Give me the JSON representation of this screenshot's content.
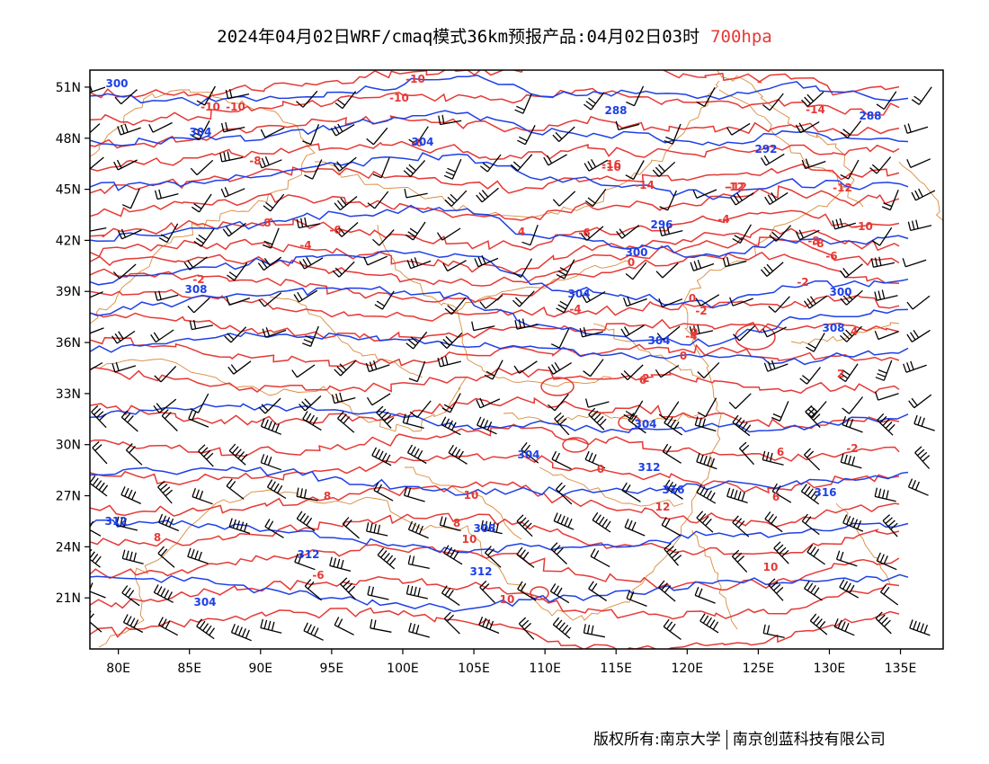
{
  "title": {
    "main": "2024年04月02日WRF/cmaq模式36km预报产品:04月02日03时",
    "level": "700hpa",
    "level_color": "#e53935"
  },
  "map": {
    "lat_labels": [
      "51N",
      "48N",
      "45N",
      "42N",
      "39N",
      "36N",
      "33N",
      "30N",
      "27N",
      "24N",
      "21N"
    ],
    "lon_labels": [
      "80E",
      "85E",
      "90E",
      "95E",
      "100E",
      "105E",
      "110E",
      "115E",
      "120E",
      "125E",
      "130E",
      "135E"
    ],
    "lon_range": [
      78,
      138
    ],
    "lat_range": [
      18,
      52
    ],
    "colors": {
      "temperature_contour": "#e53935",
      "geopotential_contour": "#1e40e6",
      "boundaries": "#d98a3a",
      "wind_barbs": "#000000"
    },
    "temperature_labels": [
      "-10",
      "-10",
      "-10",
      "-8",
      "-6",
      "-10",
      "-8",
      "-6",
      "-4",
      "-2",
      "-10",
      "-16",
      "-14",
      "-12",
      "-14",
      "-12",
      "-12",
      "-10",
      "-8",
      "-6",
      "-4",
      "-6",
      "-2",
      "0",
      "0",
      "-2",
      "-4",
      "-2",
      "0",
      "4",
      "6",
      "2",
      "-2",
      "0",
      "6",
      "6",
      "8",
      "-6",
      "8",
      "10",
      "10",
      "10",
      "12",
      "8",
      "10",
      "-4",
      "-8",
      "4",
      "0"
    ],
    "geopotential_labels": [
      "300",
      "304",
      "304",
      "308",
      "288",
      "288",
      "292",
      "296",
      "300",
      "304",
      "300",
      "304",
      "304",
      "304",
      "308",
      "312",
      "316",
      "312",
      "312",
      "316",
      "308",
      "312",
      "304"
    ]
  },
  "footer": {
    "left": "版权所有:南京大学",
    "right": "南京创蓝科技有限公司"
  }
}
